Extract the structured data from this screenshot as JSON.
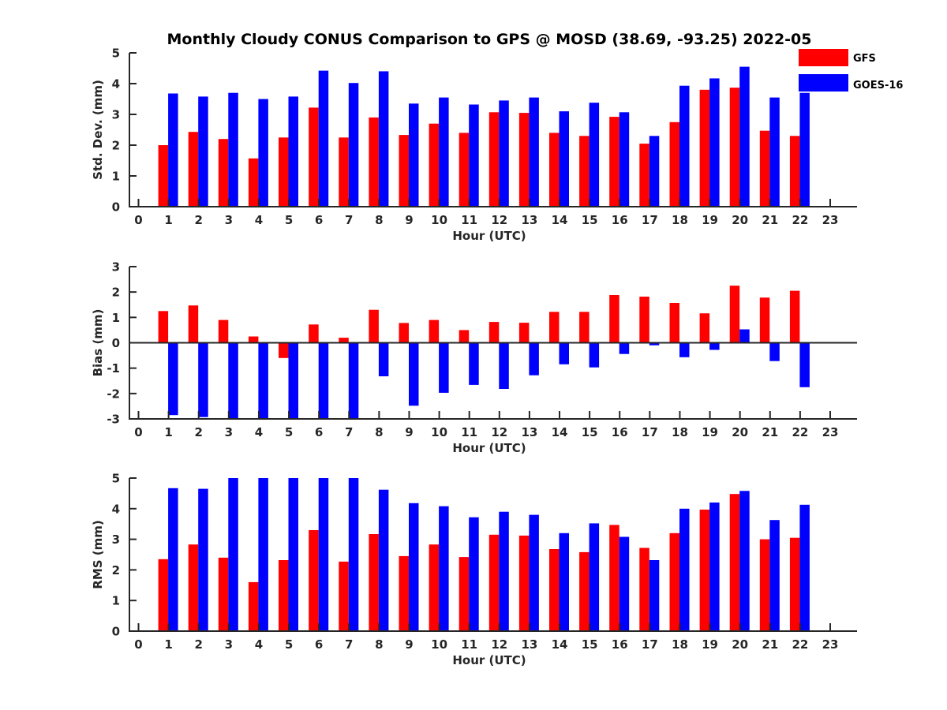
{
  "title": "Monthly Cloudy CONUS Comparison to GPS @ MOSD (38.69, -93.25) 2022-05",
  "legend": [
    {
      "name": "GFS",
      "color": "#ff0000"
    },
    {
      "name": "GOES-16",
      "color": "#0000ff"
    }
  ],
  "chart_data": [
    {
      "type": "bar",
      "title": "Monthly Cloudy CONUS Comparison to GPS @ MOSD (38.69, -93.25) 2022-05",
      "xlabel": "Hour (UTC)",
      "ylabel": "Std. Dev. (mm)",
      "ylim": [
        0,
        5
      ],
      "yticks": [
        "0",
        "1",
        "2",
        "3",
        "4",
        "5"
      ],
      "xlim": [
        0,
        23
      ],
      "categories": [
        "0",
        "1",
        "2",
        "3",
        "4",
        "5",
        "6",
        "7",
        "8",
        "9",
        "10",
        "11",
        "12",
        "13",
        "14",
        "15",
        "16",
        "17",
        "18",
        "19",
        "20",
        "21",
        "22",
        "23"
      ],
      "series": [
        {
          "name": "GFS",
          "color": "#ff0000",
          "values": [
            null,
            2.0,
            2.43,
            2.2,
            1.57,
            2.25,
            3.22,
            2.25,
            2.9,
            2.33,
            2.7,
            2.4,
            3.07,
            3.05,
            2.4,
            2.3,
            2.92,
            2.05,
            2.75,
            3.8,
            3.87,
            2.47,
            2.3,
            null
          ]
        },
        {
          "name": "GOES-16",
          "color": "#0000ff",
          "values": [
            null,
            3.68,
            3.58,
            3.7,
            3.5,
            3.58,
            4.42,
            4.02,
            4.4,
            3.35,
            3.55,
            3.32,
            3.45,
            3.55,
            3.1,
            3.38,
            3.07,
            2.3,
            3.93,
            4.17,
            4.55,
            3.55,
            3.7,
            null
          ]
        }
      ],
      "grid": false,
      "legend_position": "top-right"
    },
    {
      "type": "bar",
      "xlabel": "Hour (UTC)",
      "ylabel": "Bias (mm)",
      "ylim": [
        -3,
        3
      ],
      "yticks": [
        "-3",
        "-2",
        "-1",
        "0",
        "1",
        "2",
        "3"
      ],
      "xlim": [
        0,
        23
      ],
      "categories": [
        "0",
        "1",
        "2",
        "3",
        "4",
        "5",
        "6",
        "7",
        "8",
        "9",
        "10",
        "11",
        "12",
        "13",
        "14",
        "15",
        "16",
        "17",
        "18",
        "19",
        "20",
        "21",
        "22",
        "23"
      ],
      "series": [
        {
          "name": "GFS",
          "color": "#ff0000",
          "values": [
            null,
            1.25,
            1.47,
            0.9,
            0.25,
            -0.6,
            0.72,
            0.2,
            1.3,
            0.78,
            0.9,
            0.5,
            0.82,
            0.79,
            1.22,
            1.22,
            1.88,
            1.82,
            1.57,
            1.16,
            2.25,
            1.78,
            2.05,
            null
          ]
        },
        {
          "name": "GOES-16",
          "color": "#0000ff",
          "values": [
            null,
            -2.85,
            -2.93,
            -3.0,
            -3.0,
            -3.0,
            -3.0,
            -3.0,
            -1.32,
            -2.48,
            -1.97,
            -1.66,
            -1.82,
            -1.28,
            -0.85,
            -0.97,
            -0.44,
            -0.1,
            -0.57,
            -0.28,
            0.53,
            -0.72,
            -1.75,
            null
          ]
        }
      ],
      "zero_line": true,
      "grid": false
    },
    {
      "type": "bar",
      "xlabel": "Hour (UTC)",
      "ylabel": "RMS (mm)",
      "ylim": [
        0,
        5
      ],
      "yticks": [
        "0",
        "1",
        "2",
        "3",
        "4",
        "5"
      ],
      "xlim": [
        0,
        23
      ],
      "categories": [
        "0",
        "1",
        "2",
        "3",
        "4",
        "5",
        "6",
        "7",
        "8",
        "9",
        "10",
        "11",
        "12",
        "13",
        "14",
        "15",
        "16",
        "17",
        "18",
        "19",
        "20",
        "21",
        "22",
        "23"
      ],
      "series": [
        {
          "name": "GFS",
          "color": "#ff0000",
          "values": [
            null,
            2.35,
            2.83,
            2.4,
            1.6,
            2.32,
            3.3,
            2.27,
            3.17,
            2.45,
            2.83,
            2.42,
            3.15,
            3.12,
            2.68,
            2.58,
            3.47,
            2.72,
            3.2,
            3.97,
            4.48,
            3.0,
            3.05,
            null
          ]
        },
        {
          "name": "GOES-16",
          "color": "#0000ff",
          "values": [
            null,
            4.67,
            4.65,
            5.0,
            5.0,
            5.0,
            5.0,
            5.0,
            4.62,
            4.18,
            4.08,
            3.72,
            3.9,
            3.8,
            3.2,
            3.52,
            3.08,
            2.32,
            4.0,
            4.2,
            4.58,
            3.63,
            4.13,
            null
          ]
        }
      ],
      "grid": false
    }
  ]
}
